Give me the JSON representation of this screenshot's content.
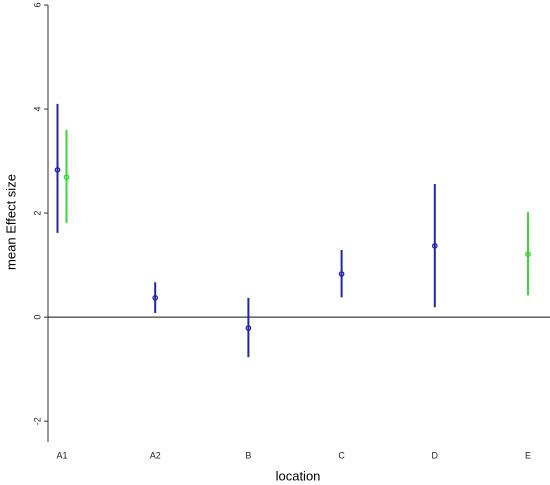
{
  "chart_data": {
    "type": "errorbar",
    "xlabel": "location",
    "ylabel": "mean Effect size",
    "categories": [
      "A1",
      "A2",
      "B",
      "C",
      "D",
      "E"
    ],
    "series": [
      {
        "color": "#2424a8",
        "values": [
          2.83,
          0.37,
          -0.21,
          0.83,
          1.37,
          null
        ],
        "lower": [
          1.62,
          0.08,
          -0.77,
          0.38,
          0.19,
          null
        ],
        "upper": [
          4.1,
          0.67,
          0.37,
          1.29,
          2.56,
          null
        ]
      },
      {
        "color": "#3ad63a",
        "values": [
          2.69,
          null,
          null,
          null,
          null,
          1.21
        ],
        "lower": [
          1.81,
          null,
          null,
          null,
          null,
          0.42
        ],
        "upper": [
          3.6,
          null,
          null,
          null,
          null,
          2.02
        ]
      }
    ],
    "ylim": [
      -2.4,
      6
    ],
    "yticks": [
      -2,
      0,
      2,
      4,
      6
    ],
    "hline": 0
  }
}
